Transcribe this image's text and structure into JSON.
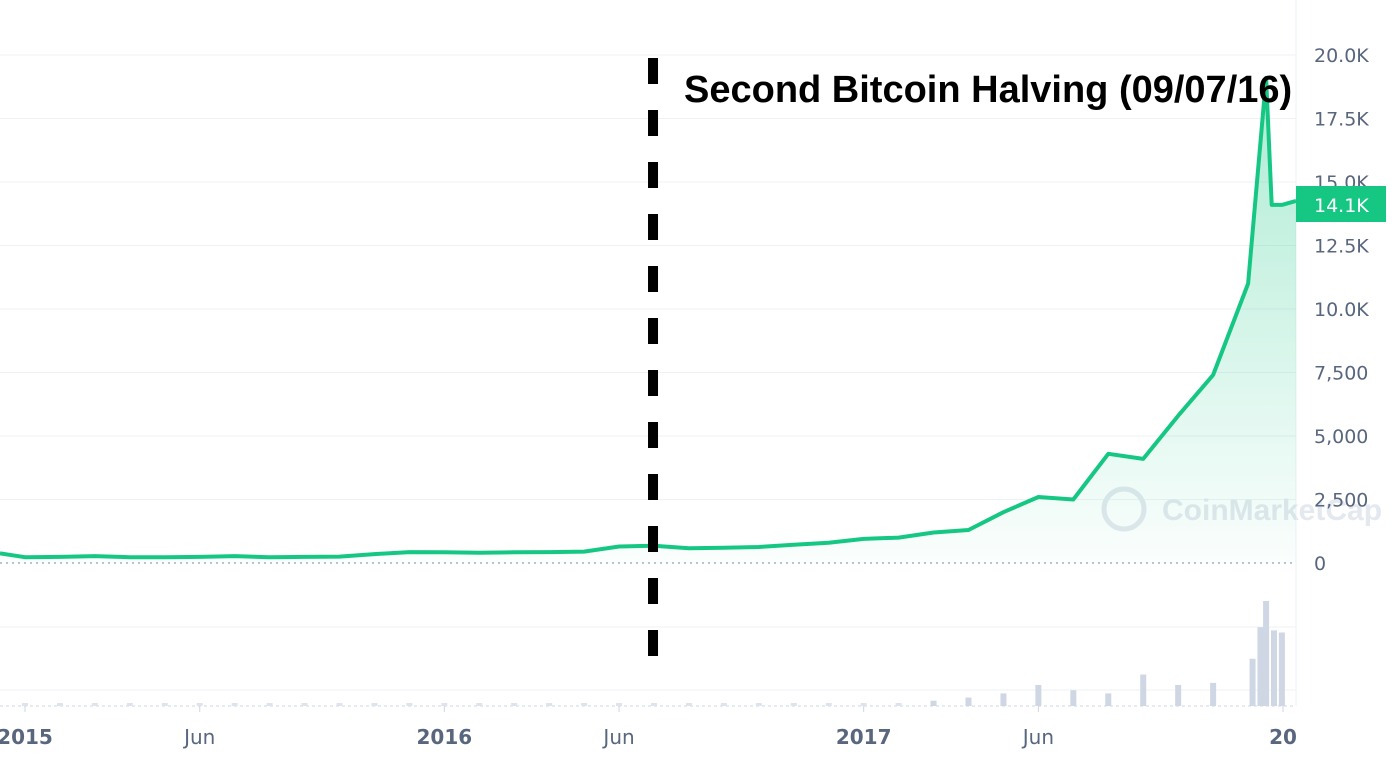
{
  "chart_data": {
    "type": "area",
    "y_axis": {
      "ticks": [
        "20.0K",
        "17.5K",
        "15.0K",
        "12.5K",
        "10.0K",
        "7,500",
        "5,000",
        "2,500",
        "0"
      ],
      "tick_values": [
        20000,
        17500,
        15000,
        12500,
        10000,
        7500,
        5000,
        2500,
        0
      ],
      "ylim": [
        0,
        20000
      ]
    },
    "x_axis": {
      "ticks": [
        {
          "label": "2015",
          "date": "2015-01",
          "year": true
        },
        {
          "label": "Jun",
          "date": "2015-06",
          "year": false
        },
        {
          "label": "2016",
          "date": "2016-01",
          "year": true
        },
        {
          "label": "Jun",
          "date": "2016-06",
          "year": false
        },
        {
          "label": "2017",
          "date": "2017-01",
          "year": true
        },
        {
          "label": "Jun",
          "date": "2017-06",
          "year": false
        },
        {
          "label": "20",
          "date": "2018-01",
          "year": true
        }
      ]
    },
    "current_value_label": "14.1K",
    "annotation": {
      "text": "Second Bitcoin Halving (09/07/16)",
      "date": "2016-07-09"
    },
    "watermark": "CoinMarketCap",
    "series": [
      {
        "color": "#16c784",
        "x": [
          "2014-12",
          "2015-01",
          "2015-02",
          "2015-03",
          "2015-04",
          "2015-05",
          "2015-06",
          "2015-07",
          "2015-08",
          "2015-09",
          "2015-10",
          "2015-11",
          "2015-12",
          "2016-01",
          "2016-02",
          "2016-03",
          "2016-04",
          "2016-05",
          "2016-06",
          "2016-07",
          "2016-08",
          "2016-09",
          "2016-10",
          "2016-11",
          "2016-12",
          "2017-01",
          "2017-02",
          "2017-03",
          "2017-04",
          "2017-05",
          "2017-06",
          "2017-07",
          "2017-08",
          "2017-09",
          "2017-10",
          "2017-11",
          "2017-12",
          "2017-12-17",
          "2017-12-22",
          "2017-12-31"
        ],
        "values": [
          380,
          230,
          240,
          270,
          230,
          230,
          240,
          270,
          230,
          240,
          250,
          350,
          430,
          420,
          400,
          420,
          430,
          450,
          650,
          680,
          580,
          600,
          630,
          720,
          800,
          950,
          1000,
          1200,
          1300,
          2000,
          2600,
          2500,
          4300,
          4100,
          5800,
          7400,
          11000,
          19100,
          14100,
          14100
        ]
      }
    ],
    "volume": {
      "x": [
        "2017-03",
        "2017-04",
        "2017-05",
        "2017-06",
        "2017-07",
        "2017-08",
        "2017-09",
        "2017-10",
        "2017-11",
        "2017-12-05",
        "2017-12-12",
        "2017-12-17",
        "2017-12-24",
        "2017-12-31"
      ],
      "relative": [
        0.05,
        0.08,
        0.12,
        0.2,
        0.15,
        0.12,
        0.3,
        0.2,
        0.22,
        0.45,
        0.75,
        1.0,
        0.72,
        0.7
      ]
    }
  }
}
